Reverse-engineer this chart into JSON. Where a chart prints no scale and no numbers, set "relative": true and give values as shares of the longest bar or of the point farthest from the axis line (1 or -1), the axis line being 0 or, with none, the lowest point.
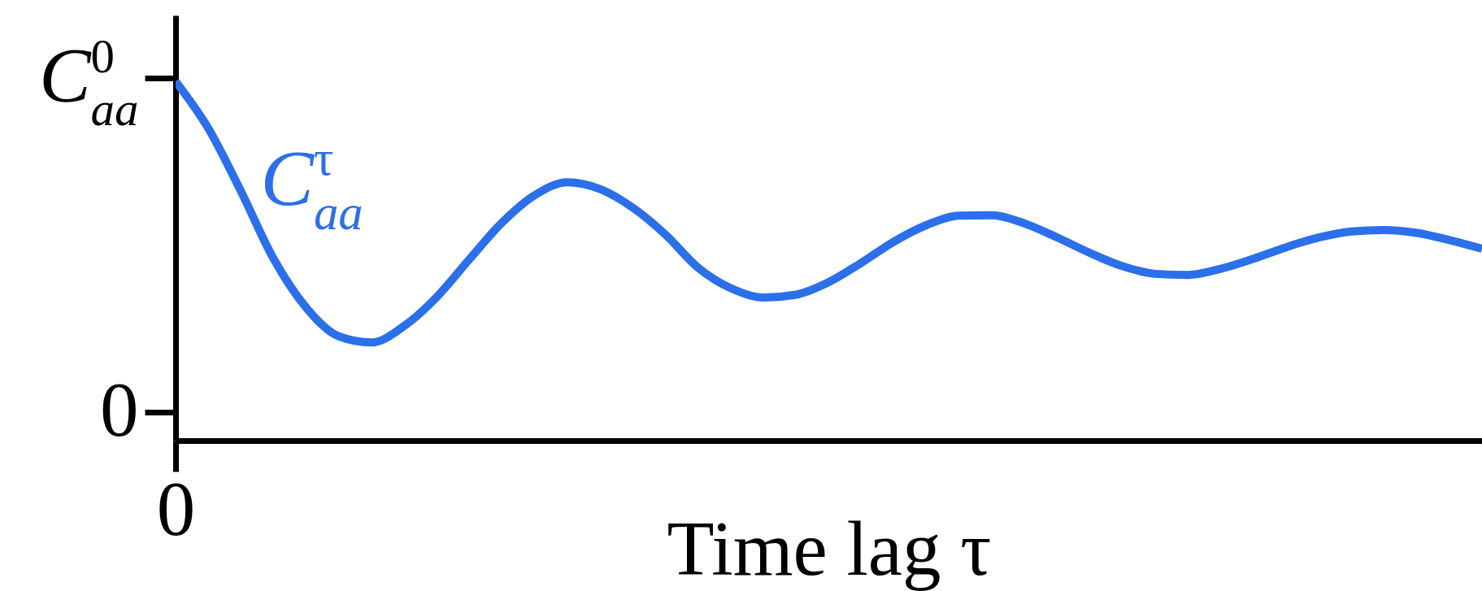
{
  "chart_data": {
    "type": "line",
    "xlabel": "Time lag τ",
    "relative": true,
    "categories": [
      null,
      null,
      null,
      null,
      null,
      null,
      null,
      null,
      null,
      null,
      null,
      null,
      null,
      null,
      null,
      null,
      null,
      null,
      null,
      null,
      null,
      null,
      null,
      null,
      null,
      null,
      null,
      null,
      null,
      null,
      null,
      null,
      null,
      null,
      null,
      null,
      null,
      null,
      null,
      null,
      null
    ],
    "series": [
      {
        "name": "C$_{aa}$$^{τ}$",
        "color": "#2b6fea",
        "values": [
          1,
          0.869,
          0.694,
          0.506,
          0.37,
          0.29,
          0.273,
          0.319,
          0.4,
          0.505,
          0.607,
          0.683,
          0.719,
          0.7,
          0.648,
          0.573,
          0.481,
          0.424,
          0.398,
          0.406,
          0.441,
          0.495,
          0.554,
          0.6,
          0.626,
          0.627,
          0.604,
          0.565,
          0.522,
          0.485,
          0.464,
          0.461,
          0.478,
          0.506,
          0.538,
          0.565,
          0.582,
          0.586,
          0.578,
          0.558,
          0.534
        ]
      }
    ],
    "annotations": [
      "0",
      "0",
      "C$_{aa}$$^{0}$"
    ],
    "line_style": "solid"
  }
}
